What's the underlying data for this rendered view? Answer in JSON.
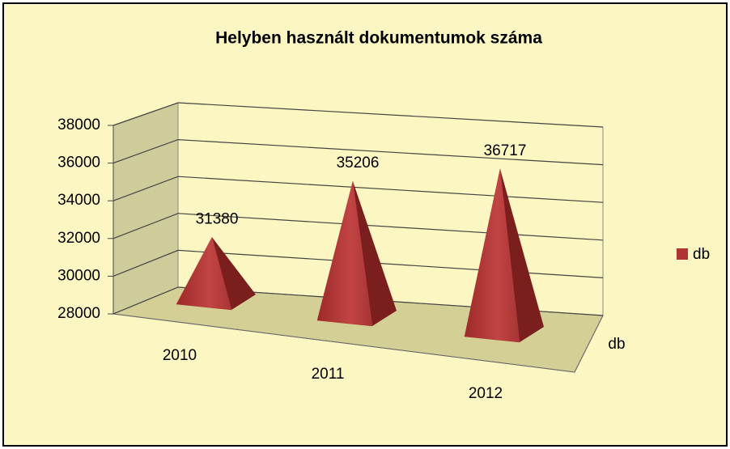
{
  "chart_data": {
    "type": "pyramid3d",
    "title": "Helyben használt dokumentumok száma",
    "categories": [
      "2010",
      "2011",
      "2012"
    ],
    "series": [
      {
        "name": "db",
        "color": "#b03434",
        "values": [
          31380,
          35206,
          36717
        ]
      }
    ],
    "depth_label": "db",
    "ylim": [
      28000,
      38000
    ],
    "yticks": [
      28000,
      30000,
      32000,
      34000,
      36000,
      38000
    ],
    "grid": true,
    "legend": "right"
  }
}
